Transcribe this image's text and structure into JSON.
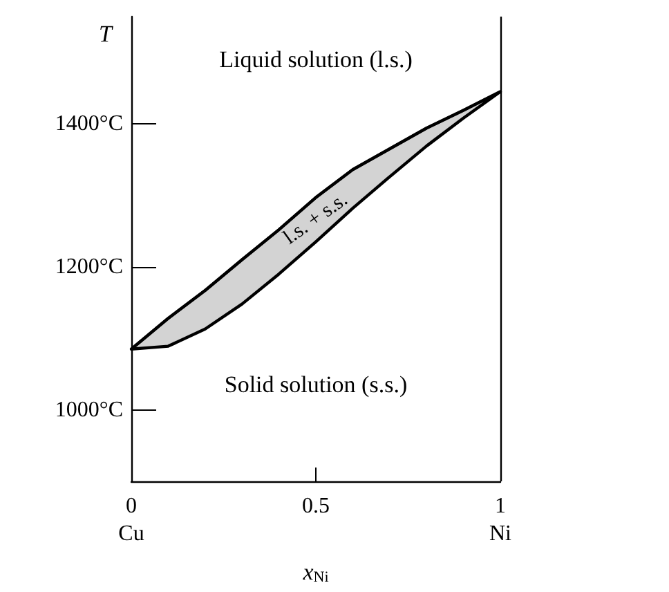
{
  "chart_data": {
    "type": "line",
    "xlabel": "x$_{Ni}$",
    "ylabel": "T",
    "x": [
      0,
      0.1,
      0.2,
      0.3,
      0.4,
      0.5,
      0.6,
      0.7,
      0.8,
      0.9,
      1
    ],
    "series": [
      {
        "color": "#000000",
        "values": [
          1085,
          1128,
          1167,
          1210,
          1252,
          1297,
          1336,
          1365,
          1394,
          1419,
          1445
        ],
        "lower": [
          1085,
          1089,
          1113,
          1148,
          1190,
          1235,
          1282,
          1326,
          1369,
          1408,
          1445
        ],
        "upper": [
          1085,
          1128,
          1167,
          1210,
          1252,
          1297,
          1336,
          1365,
          1394,
          1419,
          1445
        ]
      }
    ],
    "xlim": [
      0,
      1
    ],
    "xticks": [
      {
        "value": 0,
        "label": "0\nCu"
      },
      {
        "value": 0.5,
        "label": "0.5"
      },
      {
        "value": 1,
        "label": "1\nNi"
      }
    ],
    "ylim": [
      900,
      1550
    ],
    "yticks": [
      {
        "value": 1000,
        "label": "1000°C"
      },
      {
        "value": 1200,
        "label": "1200°C"
      },
      {
        "value": 1400,
        "label": "1400°C"
      }
    ],
    "ref_lines": [
      {
        "axis": "x",
        "value": 1,
        "color": "#000000"
      }
    ],
    "annotations": [
      "Liquid solution (l.s.)",
      "l.s. + s.s.",
      "Solid solution (s.s.)"
    ],
    "grid": false,
    "marker": "none",
    "line_style": "solid"
  }
}
